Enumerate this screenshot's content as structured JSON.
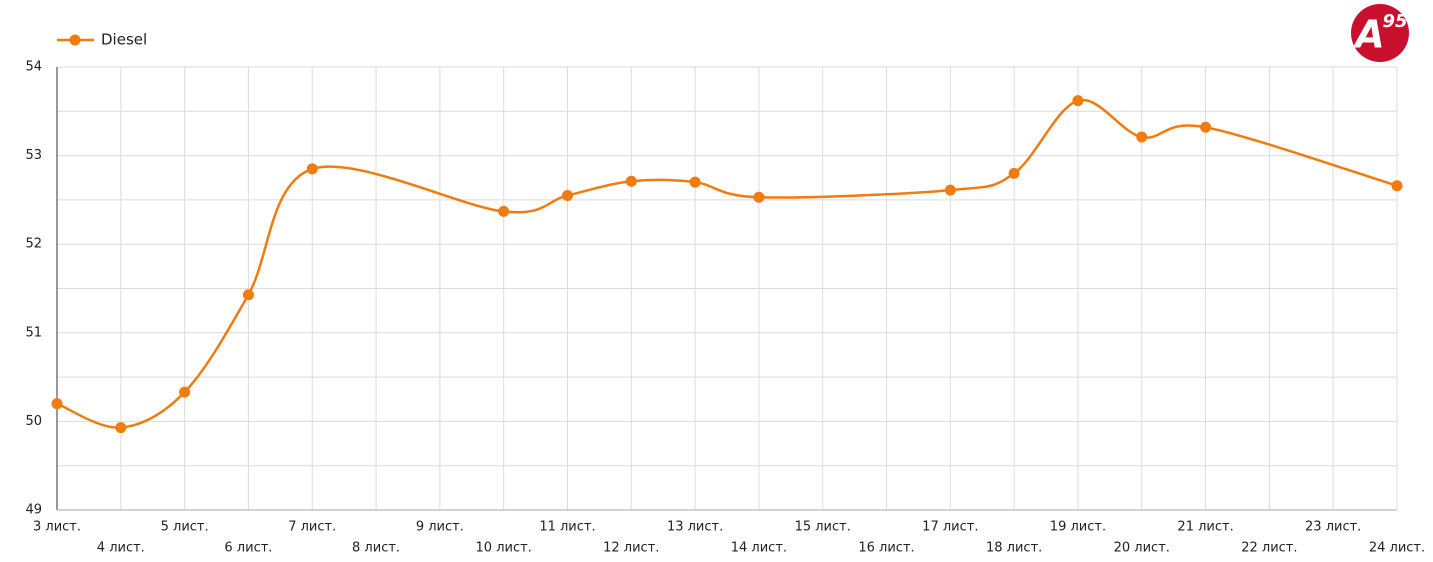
{
  "chart_data": {
    "type": "line",
    "logo": {
      "letter": "A",
      "superscript": "95"
    },
    "x": [
      3,
      4,
      5,
      6,
      7,
      10,
      11,
      12,
      13,
      14,
      17,
      18,
      19,
      20,
      21,
      24
    ],
    "series": [
      {
        "name": "Diesel",
        "color": "#f07c10",
        "values": [
          50.2,
          49.93,
          50.33,
          51.43,
          52.85,
          52.37,
          52.55,
          52.71,
          52.7,
          52.53,
          52.61,
          52.8,
          53.62,
          53.21,
          53.32,
          52.66
        ]
      }
    ],
    "xlim": [
      3,
      24
    ],
    "xticks": [
      {
        "value": 3,
        "label": "3 лист."
      },
      {
        "value": 4,
        "label": "4 лист."
      },
      {
        "value": 5,
        "label": "5 лист."
      },
      {
        "value": 6,
        "label": "6 лист."
      },
      {
        "value": 7,
        "label": "7 лист."
      },
      {
        "value": 8,
        "label": "8 лист."
      },
      {
        "value": 9,
        "label": "9 лист."
      },
      {
        "value": 10,
        "label": "10 лист."
      },
      {
        "value": 11,
        "label": "11 лист."
      },
      {
        "value": 12,
        "label": "12 лист."
      },
      {
        "value": 13,
        "label": "13 лист."
      },
      {
        "value": 14,
        "label": "14 лист."
      },
      {
        "value": 15,
        "label": "15 лист."
      },
      {
        "value": 16,
        "label": "16 лист."
      },
      {
        "value": 17,
        "label": "17 лист."
      },
      {
        "value": 18,
        "label": "18 лист."
      },
      {
        "value": 19,
        "label": "19 лист."
      },
      {
        "value": 20,
        "label": "20 лист."
      },
      {
        "value": 21,
        "label": "21 лист."
      },
      {
        "value": 22,
        "label": "22 лист."
      },
      {
        "value": 23,
        "label": "23 лист."
      },
      {
        "value": 24,
        "label": "24 лист."
      }
    ],
    "ylim": [
      49,
      54
    ],
    "yticks": [
      49,
      50,
      51,
      52,
      53,
      54
    ],
    "y_minor_ticks": [
      49.5,
      50.5,
      51.5,
      52.5,
      53.5
    ],
    "grid": true,
    "legend": "top-left",
    "smooth": true
  }
}
